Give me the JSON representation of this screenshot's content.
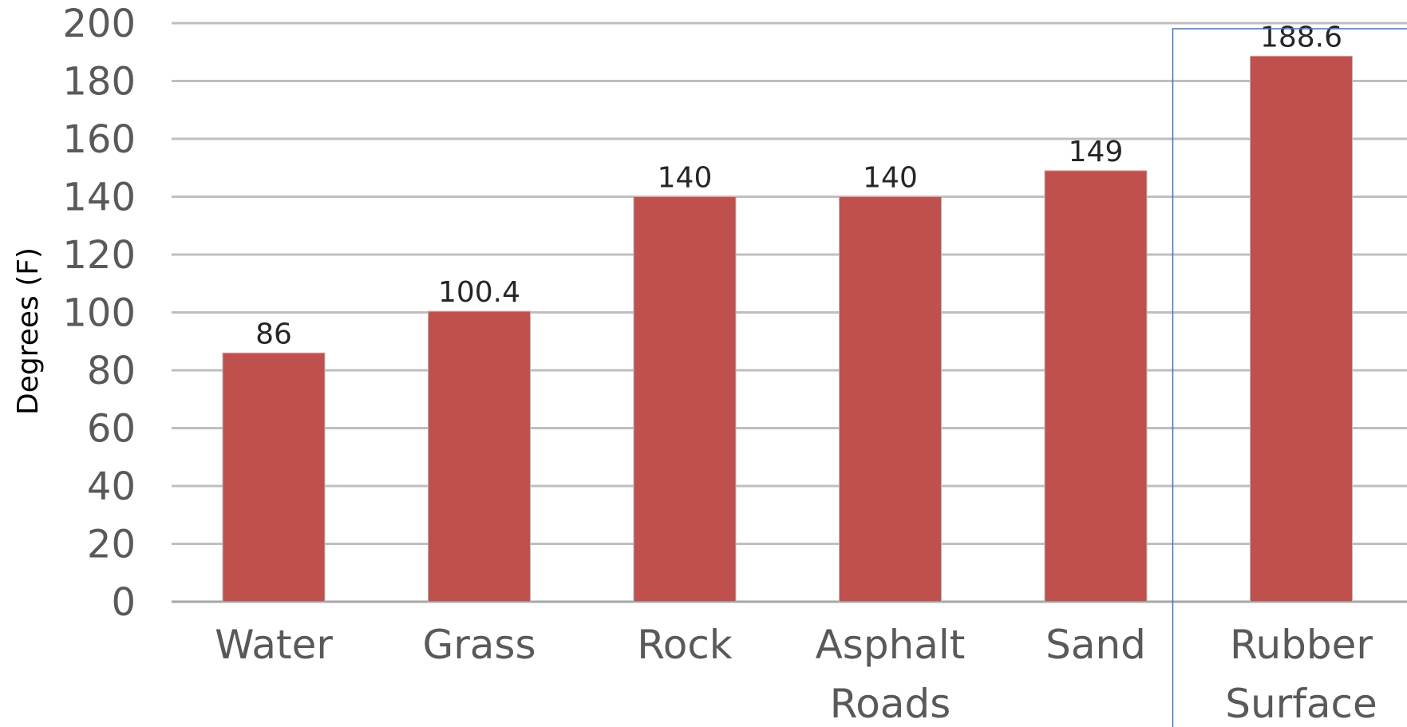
{
  "chart_data": {
    "type": "bar",
    "ylabel": "Degrees (F)",
    "xlabel": "",
    "title": "",
    "ylim": [
      0,
      200
    ],
    "yticks": [
      0,
      20,
      40,
      60,
      80,
      100,
      120,
      140,
      160,
      180,
      200
    ],
    "categories": [
      [
        "Water"
      ],
      [
        "Grass"
      ],
      [
        "Rock"
      ],
      [
        "Asphalt",
        "Roads"
      ],
      [
        "Sand"
      ],
      [
        "Rubber",
        "Surface"
      ]
    ],
    "values": [
      86,
      100.4,
      140,
      140,
      149,
      188.6
    ],
    "data_labels": [
      "86",
      "100.4",
      "140",
      "140",
      "149",
      "188.6"
    ],
    "grid": true,
    "bar_color": "#c0504d",
    "highlighted_category": "Rubber Surface",
    "highlight_color": "#4472c4"
  }
}
